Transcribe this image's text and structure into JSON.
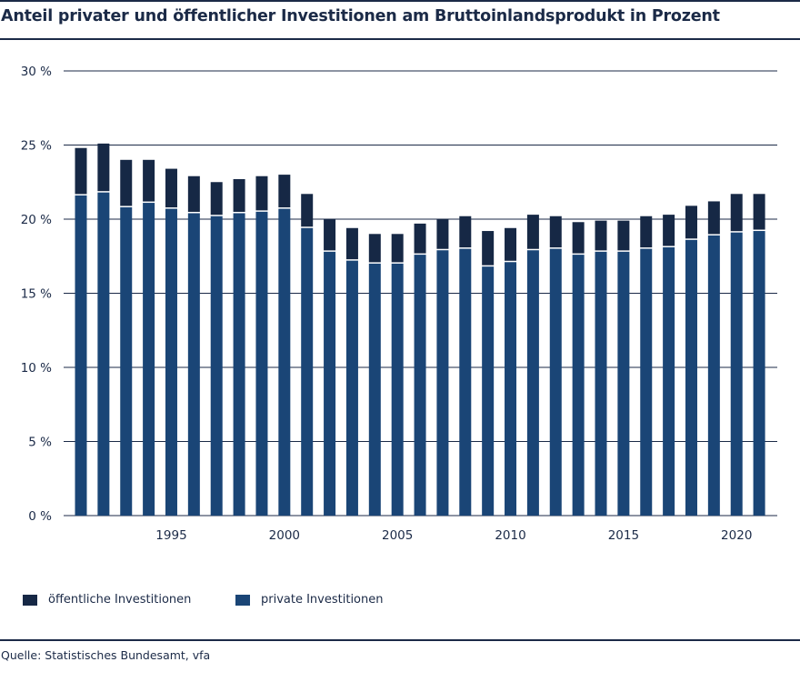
{
  "title": "Anteil privater und öffentlicher Investitionen am Bruttoinlandsprodukt in Prozent",
  "source": "Quelle: Statistisches Bundesamt, vfa",
  "legend": {
    "public_label": "öffentliche Investitionen",
    "private_label": "private Investitionen"
  },
  "colors": {
    "private": "#1a4576",
    "public": "#162845",
    "text": "#1b2a47",
    "grid": "#1b2a47"
  },
  "chart_data": {
    "type": "bar",
    "stacked": true,
    "title": "Anteil privater und öffentlicher Investitionen am Bruttoinlandsprodukt in Prozent",
    "xlabel": "",
    "ylabel": "",
    "ylim": [
      0,
      30
    ],
    "yticks": [
      0,
      5,
      10,
      15,
      20,
      25,
      30
    ],
    "ytick_labels": [
      "0 %",
      "5 %",
      "10 %",
      "15 %",
      "20 %",
      "25 %",
      "30 %"
    ],
    "xtick_labels": [
      "1995",
      "2000",
      "2005",
      "2010",
      "2015",
      "2020"
    ],
    "categories": [
      1991,
      1992,
      1993,
      1994,
      1995,
      1996,
      1997,
      1998,
      1999,
      2000,
      2001,
      2002,
      2003,
      2004,
      2005,
      2006,
      2007,
      2008,
      2009,
      2010,
      2011,
      2012,
      2013,
      2014,
      2015,
      2016,
      2017,
      2018,
      2019,
      2020,
      2021
    ],
    "series": [
      {
        "name": "private Investitionen",
        "values": [
          21.6,
          21.8,
          20.8,
          21.1,
          20.7,
          20.4,
          20.2,
          20.4,
          20.5,
          20.7,
          19.4,
          17.8,
          17.2,
          17.0,
          17.0,
          17.6,
          17.9,
          18.0,
          16.8,
          17.1,
          17.9,
          18.0,
          17.6,
          17.8,
          17.8,
          18.0,
          18.1,
          18.6,
          18.9,
          19.1,
          19.2
        ]
      },
      {
        "name": "öffentliche Investitionen",
        "values": [
          3.2,
          3.3,
          3.2,
          2.9,
          2.7,
          2.5,
          2.3,
          2.3,
          2.4,
          2.3,
          2.3,
          2.2,
          2.2,
          2.0,
          2.0,
          2.1,
          2.1,
          2.2,
          2.4,
          2.3,
          2.4,
          2.2,
          2.2,
          2.1,
          2.1,
          2.2,
          2.2,
          2.3,
          2.3,
          2.6,
          2.5
        ]
      }
    ],
    "grid": true,
    "legend_position": "bottom-left"
  }
}
